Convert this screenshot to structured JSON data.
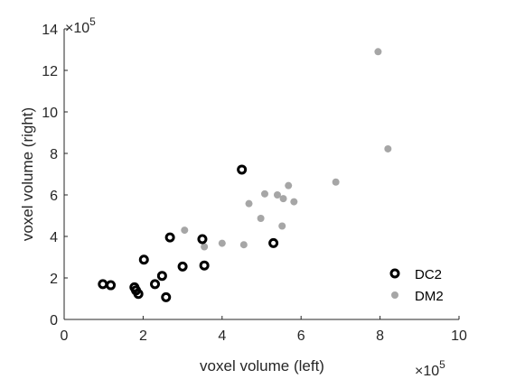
{
  "chart_data": {
    "type": "scatter",
    "xlabel": "voxel volume (left)",
    "ylabel": "voxel volume (right)",
    "x_multiplier": "×10",
    "x_exponent": "5",
    "y_multiplier": "×10",
    "y_exponent": "5",
    "xlim": [
      0,
      10
    ],
    "ylim": [
      0,
      14
    ],
    "x_ticks": [
      "0",
      "2",
      "4",
      "6",
      "8",
      "10"
    ],
    "y_ticks": [
      "0",
      "2",
      "4",
      "6",
      "8",
      "10",
      "12",
      "14"
    ],
    "grid": false,
    "legend_position": "bottom-right",
    "series": [
      {
        "name": "DC2",
        "marker": "open-circle",
        "color": "#000000",
        "points": [
          [
            0.98,
            1.7
          ],
          [
            1.18,
            1.65
          ],
          [
            1.78,
            1.55
          ],
          [
            1.82,
            1.4
          ],
          [
            1.88,
            1.23
          ],
          [
            2.02,
            2.88
          ],
          [
            2.3,
            1.7
          ],
          [
            2.48,
            2.1
          ],
          [
            2.58,
            1.07
          ],
          [
            2.68,
            3.95
          ],
          [
            3.0,
            2.55
          ],
          [
            3.5,
            3.87
          ],
          [
            3.55,
            2.6
          ],
          [
            4.5,
            7.22
          ],
          [
            5.3,
            3.68
          ]
        ]
      },
      {
        "name": "DM2",
        "marker": "filled-dot",
        "color": "#a6a6a6",
        "points": [
          [
            3.05,
            4.3
          ],
          [
            3.55,
            3.5
          ],
          [
            4.0,
            3.67
          ],
          [
            4.55,
            3.6
          ],
          [
            4.68,
            5.58
          ],
          [
            4.98,
            4.87
          ],
          [
            5.08,
            6.05
          ],
          [
            5.4,
            6.0
          ],
          [
            5.52,
            4.5
          ],
          [
            5.55,
            5.82
          ],
          [
            5.68,
            6.45
          ],
          [
            5.82,
            5.67
          ],
          [
            6.88,
            6.62
          ],
          [
            7.95,
            12.9
          ],
          [
            8.2,
            8.22
          ]
        ]
      }
    ]
  }
}
